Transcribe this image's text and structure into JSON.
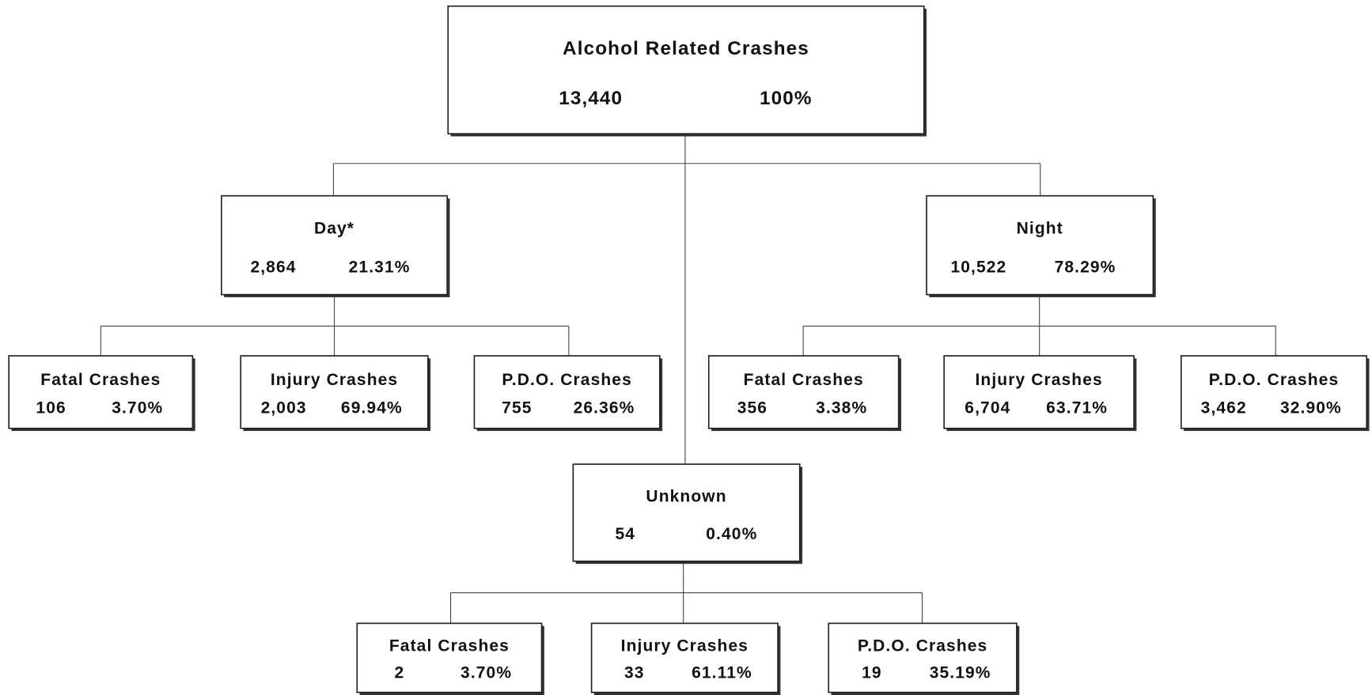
{
  "nodes": [
    {
      "label": "Alcohol Related Crashes",
      "count": "13,440",
      "percent": "100%"
    },
    {
      "label": "Day*",
      "count": "2,864",
      "percent": "21.31%"
    },
    {
      "label": "Night",
      "count": "10,522",
      "percent": "78.29%"
    },
    {
      "label": "Unknown",
      "count": "54",
      "percent": "0.40%"
    },
    {
      "label": "Fatal Crashes",
      "count": "106",
      "percent": "3.70%"
    },
    {
      "label": "Injury Crashes",
      "count": "2,003",
      "percent": "69.94%"
    },
    {
      "label": "P.D.O. Crashes",
      "count": "755",
      "percent": "26.36%"
    },
    {
      "label": "Fatal Crashes",
      "count": "356",
      "percent": "3.38%"
    },
    {
      "label": "Injury Crashes",
      "count": "6,704",
      "percent": "63.71%"
    },
    {
      "label": "P.D.O. Crashes",
      "count": "3,462",
      "percent": "32.90%"
    },
    {
      "label": "Fatal Crashes",
      "count": "2",
      "percent": "3.70%"
    },
    {
      "label": "Injury Crashes",
      "count": "33",
      "percent": "61.11%"
    },
    {
      "label": "P.D.O. Crashes",
      "count": "19",
      "percent": "35.19%"
    }
  ]
}
